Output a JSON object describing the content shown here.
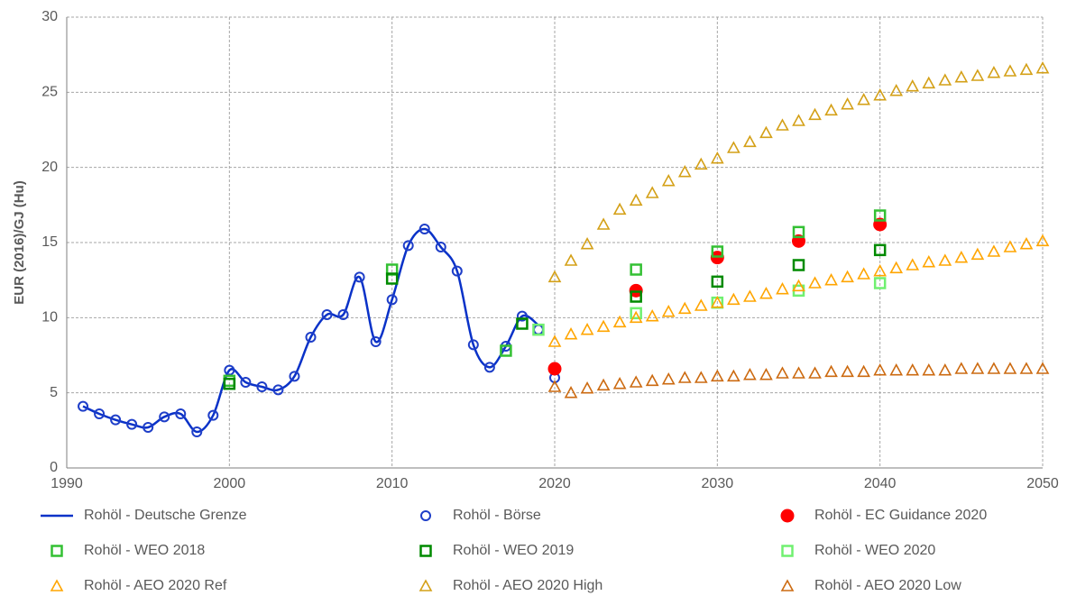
{
  "chart_data": {
    "type": "scatter",
    "ylabel": "EUR (2016)/GJ (Hu)",
    "xlim": [
      1990,
      2050
    ],
    "xticks": [
      1990,
      2000,
      2010,
      2020,
      2030,
      2040,
      2050
    ],
    "ylim": [
      0,
      30
    ],
    "yticks": [
      0,
      5,
      10,
      15,
      20,
      25,
      30
    ],
    "grid": true,
    "series": [
      {
        "name": "Rohöl - Deutsche Grenze",
        "color": "#0a32c8",
        "marker": "line",
        "x": [
          1991,
          1992,
          1993,
          1994,
          1995,
          1996,
          1997,
          1998,
          1999,
          2000,
          2001,
          2002,
          2003,
          2004,
          2005,
          2006,
          2007,
          2008,
          2009,
          2010,
          2011,
          2012,
          2013,
          2014,
          2015,
          2016,
          2017,
          2018,
          2019
        ],
        "values": [
          4.1,
          3.6,
          3.2,
          2.9,
          2.7,
          3.4,
          3.6,
          2.4,
          3.5,
          6.5,
          5.7,
          5.4,
          5.2,
          6.1,
          8.7,
          10.2,
          10.2,
          12.7,
          8.4,
          11.2,
          14.8,
          15.9,
          14.7,
          13.1,
          8.2,
          6.7,
          8.1,
          10.1,
          9.5
        ]
      },
      {
        "name": "Rohöl - Börse",
        "color": "#1e3ec8",
        "marker": "circle",
        "x": [
          1991,
          1992,
          1993,
          1994,
          1995,
          1996,
          1997,
          1998,
          1999,
          2000,
          2001,
          2002,
          2003,
          2004,
          2005,
          2006,
          2007,
          2008,
          2009,
          2010,
          2011,
          2012,
          2013,
          2014,
          2015,
          2016,
          2017,
          2018,
          2019,
          2020
        ],
        "values": [
          4.1,
          3.6,
          3.2,
          2.9,
          2.7,
          3.4,
          3.6,
          2.4,
          3.5,
          6.5,
          5.7,
          5.4,
          5.2,
          6.1,
          8.7,
          10.2,
          10.2,
          12.7,
          8.4,
          11.2,
          14.8,
          15.9,
          14.7,
          13.1,
          8.2,
          6.7,
          8.1,
          10.1,
          9.2,
          6.0
        ]
      },
      {
        "name": "Rohöl - EC Guidance 2020",
        "color": "#ff0000",
        "marker": "dot",
        "x": [
          2020,
          2025,
          2030,
          2035,
          2040
        ],
        "values": [
          6.6,
          11.8,
          14.0,
          15.1,
          16.2
        ]
      },
      {
        "name": "Rohöl - WEO 2018",
        "color": "#33c033",
        "marker": "square",
        "x": [
          2000,
          2010,
          2017,
          2025,
          2030,
          2035,
          2040
        ],
        "values": [
          5.8,
          13.2,
          7.8,
          13.2,
          14.4,
          15.7,
          16.8
        ]
      },
      {
        "name": "Rohöl - WEO 2019",
        "color": "#008a00",
        "marker": "square",
        "x": [
          2000,
          2010,
          2018,
          2025,
          2030,
          2035,
          2040
        ],
        "values": [
          5.6,
          12.6,
          9.6,
          11.4,
          12.4,
          13.5,
          14.5
        ]
      },
      {
        "name": "Rohöl - WEO 2020",
        "color": "#70f070",
        "marker": "square",
        "x": [
          2019,
          2025,
          2030,
          2035,
          2040
        ],
        "values": [
          9.2,
          10.3,
          11.0,
          11.8,
          12.3
        ]
      },
      {
        "name": "Rohöl - AEO 2020 Ref",
        "color": "#ffa500",
        "marker": "triangle",
        "x": [
          2020,
          2021,
          2022,
          2023,
          2024,
          2025,
          2026,
          2027,
          2028,
          2029,
          2030,
          2031,
          2032,
          2033,
          2034,
          2035,
          2036,
          2037,
          2038,
          2039,
          2040,
          2041,
          2042,
          2043,
          2044,
          2045,
          2046,
          2047,
          2048,
          2049,
          2050
        ],
        "values": [
          8.4,
          8.9,
          9.2,
          9.4,
          9.7,
          10.0,
          10.1,
          10.4,
          10.6,
          10.8,
          11.0,
          11.2,
          11.4,
          11.6,
          11.9,
          12.1,
          12.3,
          12.5,
          12.7,
          12.9,
          13.1,
          13.3,
          13.5,
          13.7,
          13.8,
          14.0,
          14.2,
          14.4,
          14.7,
          14.9,
          15.1
        ]
      },
      {
        "name": "Rohöl - AEO 2020 High",
        "color": "#d4a017",
        "marker": "triangle",
        "x": [
          2020,
          2021,
          2022,
          2023,
          2024,
          2025,
          2026,
          2027,
          2028,
          2029,
          2030,
          2031,
          2032,
          2033,
          2034,
          2035,
          2036,
          2037,
          2038,
          2039,
          2040,
          2041,
          2042,
          2043,
          2044,
          2045,
          2046,
          2047,
          2048,
          2049,
          2050
        ],
        "values": [
          12.7,
          13.8,
          14.9,
          16.2,
          17.2,
          17.8,
          18.3,
          19.1,
          19.7,
          20.2,
          20.6,
          21.3,
          21.7,
          22.3,
          22.8,
          23.1,
          23.5,
          23.8,
          24.2,
          24.5,
          24.8,
          25.1,
          25.4,
          25.6,
          25.8,
          26.0,
          26.1,
          26.3,
          26.4,
          26.5,
          26.6
        ]
      },
      {
        "name": "Rohöl - AEO 2020 Low",
        "color": "#cc6a10",
        "marker": "triangle",
        "x": [
          2020,
          2021,
          2022,
          2023,
          2024,
          2025,
          2026,
          2027,
          2028,
          2029,
          2030,
          2031,
          2032,
          2033,
          2034,
          2035,
          2036,
          2037,
          2038,
          2039,
          2040,
          2041,
          2042,
          2043,
          2044,
          2045,
          2046,
          2047,
          2048,
          2049,
          2050
        ],
        "values": [
          5.4,
          5.0,
          5.3,
          5.5,
          5.6,
          5.7,
          5.8,
          5.9,
          6.0,
          6.0,
          6.1,
          6.1,
          6.2,
          6.2,
          6.3,
          6.3,
          6.3,
          6.4,
          6.4,
          6.4,
          6.5,
          6.5,
          6.5,
          6.5,
          6.5,
          6.6,
          6.6,
          6.6,
          6.6,
          6.6,
          6.6
        ]
      }
    ]
  }
}
